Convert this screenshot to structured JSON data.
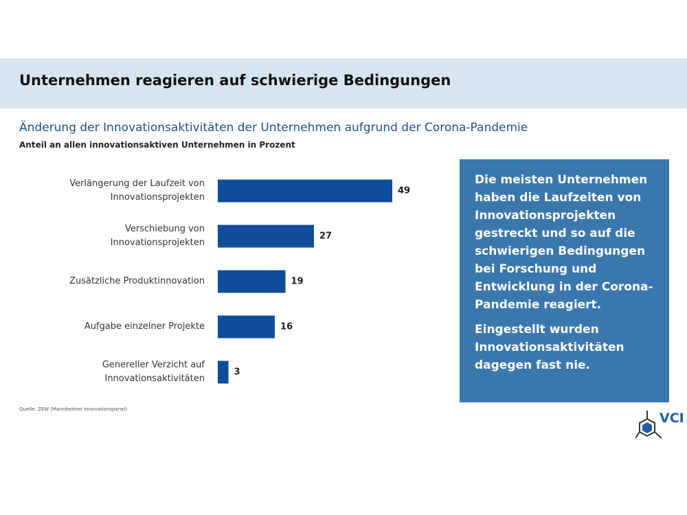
{
  "header": {
    "title": "Unternehmen reagieren auf schwierige Bedingungen"
  },
  "chart_data": {
    "type": "bar",
    "orientation": "horizontal",
    "title": "Änderung der Innovationsaktivitäten der Unternehmen aufgrund der Corona-Pandemie",
    "subtitle": "Anteil an allen innovationsaktiven Unternehmen in Prozent",
    "categories": [
      "Verlängerung der Laufzeit von\nInnovationsprojekten",
      "Verschiebung von\nInnovationsprojekten",
      "Zusätzliche Produktinnovation",
      "Aufgabe einzelner Projekte",
      "Genereller Verzicht auf\nInnovationsaktivitäten"
    ],
    "values": [
      49,
      27,
      19,
      16,
      3
    ],
    "color": "#0f4c9b",
    "source": "Quelle: ZEW (Mannheimer Innovationspanel)"
  },
  "textbox": {
    "paragraphs": [
      "Die meisten Unternehmen haben die Laufzeiten von Innovationsprojekten gestreckt und so auf die schwierigen Bedingungen bei Forschung und Entwicklung in der Corona-Pandemie reagiert.",
      "Eingestellt wurden Innovationsaktivitäten dagegen fast nie."
    ]
  },
  "logo": {
    "text": "VCI"
  }
}
